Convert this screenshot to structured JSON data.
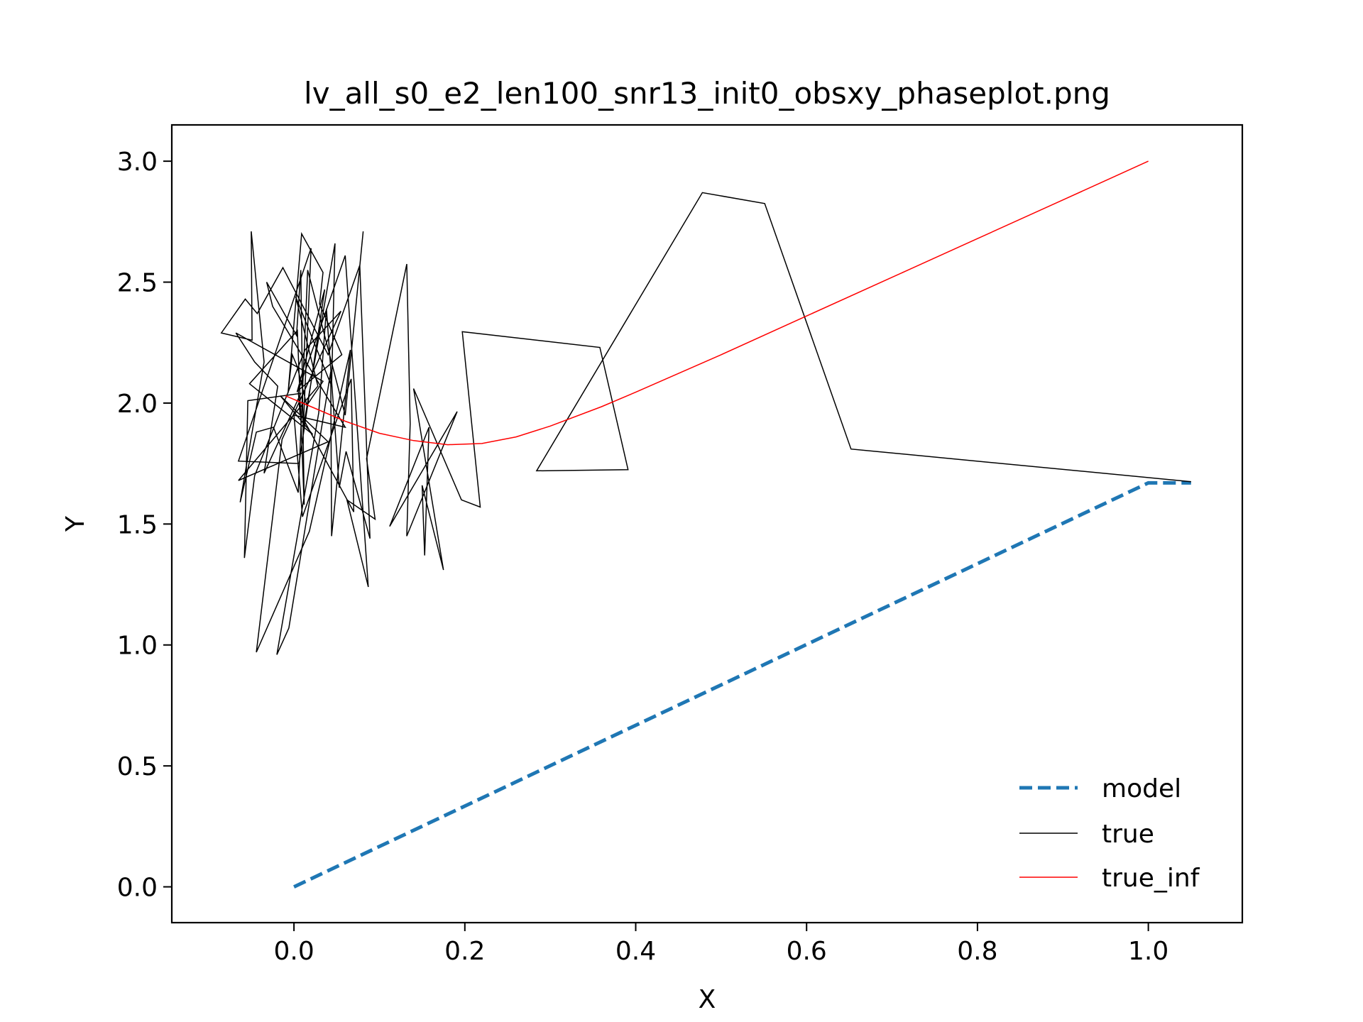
{
  "chart_data": {
    "type": "line",
    "title": "lv_all_s0_e2_len100_snr13_init0_obsxy_phaseplot.png",
    "xlabel": "X",
    "ylabel": "Y",
    "xlim": [
      -0.143,
      1.11
    ],
    "ylim": [
      -0.148,
      3.15
    ],
    "xticks": [
      0.0,
      0.2,
      0.4,
      0.6,
      0.8,
      1.0
    ],
    "xtick_labels": [
      "0.0",
      "0.2",
      "0.4",
      "0.6",
      "0.8",
      "1.0"
    ],
    "yticks": [
      0.0,
      0.5,
      1.0,
      1.5,
      2.0,
      2.5,
      3.0
    ],
    "ytick_labels": [
      "0.0",
      "0.5",
      "1.0",
      "1.5",
      "2.0",
      "2.5",
      "3.0"
    ],
    "grid": false,
    "legend": {
      "position": "lower-right",
      "entries": [
        "model",
        "true",
        "true_inf"
      ]
    },
    "series": [
      {
        "name": "model",
        "color": "#1f77b4",
        "style": "dashed",
        "points": [
          [
            0.0,
            0.0
          ],
          [
            1.0,
            1.67
          ],
          [
            1.05,
            1.67
          ]
        ]
      },
      {
        "name": "true",
        "color": "#000000",
        "style": "solid",
        "points": [
          [
            1.05,
            1.675
          ],
          [
            0.652,
            1.81
          ],
          [
            0.551,
            2.825
          ],
          [
            0.478,
            2.87
          ],
          [
            0.284,
            1.72
          ],
          [
            0.391,
            1.725
          ],
          [
            0.358,
            2.23
          ],
          [
            0.197,
            2.295
          ],
          [
            0.218,
            1.57
          ],
          [
            0.196,
            1.6
          ],
          [
            0.14,
            2.06
          ],
          [
            0.175,
            1.31
          ],
          [
            0.15,
            1.66
          ],
          [
            0.153,
            1.37
          ],
          [
            0.158,
            1.9
          ],
          [
            0.112,
            1.49
          ],
          [
            0.191,
            1.965
          ],
          [
            0.132,
            1.45
          ],
          [
            0.136,
            1.915
          ],
          [
            0.132,
            2.575
          ],
          [
            0.085,
            1.77
          ],
          [
            0.095,
            1.52
          ],
          [
            0.062,
            1.6
          ],
          [
            0.087,
            1.24
          ],
          [
            0.06,
            2.61
          ],
          [
            0.005,
            2.05
          ],
          [
            0.007,
            1.96
          ],
          [
            0.07,
            1.55
          ],
          [
            0.067,
            2.1
          ],
          [
            0.01,
            1.53
          ],
          [
            0.0,
            1.95
          ],
          [
            0.06,
            1.9
          ],
          [
            -0.025,
            2.4
          ],
          [
            -0.032,
            2.5
          ],
          [
            0.003,
            2.28
          ],
          [
            0.008,
            2.55
          ],
          [
            0.012,
            1.58
          ],
          [
            0.004,
            2.3
          ],
          [
            -0.052,
            2.08
          ],
          [
            0.022,
            1.87
          ],
          [
            -0.016,
            2.03
          ],
          [
            0.04,
            1.84
          ],
          [
            -0.065,
            1.68
          ],
          [
            0.028,
            2.07
          ],
          [
            0.002,
            2.44
          ],
          [
            0.044,
            2.07
          ],
          [
            0.048,
            2.66
          ],
          [
            0.011,
            1.9
          ],
          [
            0.02,
            2.64
          ],
          [
            -0.065,
            1.76
          ],
          [
            0.006,
            1.75
          ],
          [
            0.036,
            2.47
          ],
          [
            0.004,
            2.05
          ],
          [
            0.056,
            2.2
          ],
          [
            0.03,
            2.41
          ],
          [
            0.034,
            2.54
          ],
          [
            0.009,
            2.7
          ],
          [
            -0.007,
            2.04
          ],
          [
            -0.002,
            2.2
          ],
          [
            0.004,
            2.15
          ],
          [
            0.015,
            1.99
          ],
          [
            0.034,
            2.09
          ],
          [
            -0.068,
            2.29
          ],
          [
            -0.046,
            2.17
          ],
          [
            -0.019,
            2.07
          ],
          [
            -0.035,
            1.71
          ],
          [
            0.008,
            2.04
          ],
          [
            -0.054,
            2.01
          ],
          [
            -0.058,
            1.36
          ],
          [
            -0.046,
            1.7
          ],
          [
            0.013,
            2.22
          ],
          [
            0.055,
            2.38
          ],
          [
            -0.014,
            1.85
          ],
          [
            -0.044,
            0.97
          ],
          [
            0.018,
            1.47
          ],
          [
            0.066,
            2.22
          ],
          [
            0.044,
            1.45
          ],
          [
            0.043,
            2.13
          ],
          [
            -0.006,
            1.07
          ],
          [
            -0.02,
            0.96
          ],
          [
            0.029,
            1.96
          ],
          [
            0.038,
            2.39
          ],
          [
            0.053,
            1.65
          ],
          [
            0.061,
            1.8
          ],
          [
            0.089,
            1.44
          ],
          [
            0.077,
            2.57
          ],
          [
            0.04,
            2.2
          ],
          [
            -0.013,
            2.56
          ],
          [
            -0.043,
            2.37
          ],
          [
            -0.057,
            2.43
          ],
          [
            -0.085,
            2.29
          ],
          [
            -0.049,
            2.26
          ],
          [
            -0.05,
            2.71
          ],
          [
            -0.035,
            2.17
          ],
          [
            -0.063,
            1.59
          ],
          [
            -0.044,
            1.88
          ],
          [
            -0.024,
            1.9
          ],
          [
            0.005,
            1.63
          ],
          [
            0.016,
            2.55
          ],
          [
            0.06,
            1.95
          ],
          [
            0.081,
            2.71
          ]
        ]
      },
      {
        "name": "true_inf",
        "color": "#ff0000",
        "style": "solid",
        "points": [
          [
            -0.01,
            2.03
          ],
          [
            0.02,
            1.985
          ],
          [
            0.06,
            1.925
          ],
          [
            0.1,
            1.875
          ],
          [
            0.14,
            1.845
          ],
          [
            0.18,
            1.828
          ],
          [
            0.22,
            1.833
          ],
          [
            0.26,
            1.86
          ],
          [
            0.3,
            1.905
          ],
          [
            0.36,
            1.985
          ],
          [
            0.4,
            2.045
          ],
          [
            0.5,
            2.2
          ],
          [
            0.6,
            2.36
          ],
          [
            0.7,
            2.52
          ],
          [
            0.8,
            2.68
          ],
          [
            0.9,
            2.84
          ],
          [
            1.0,
            3.0
          ]
        ]
      }
    ]
  }
}
